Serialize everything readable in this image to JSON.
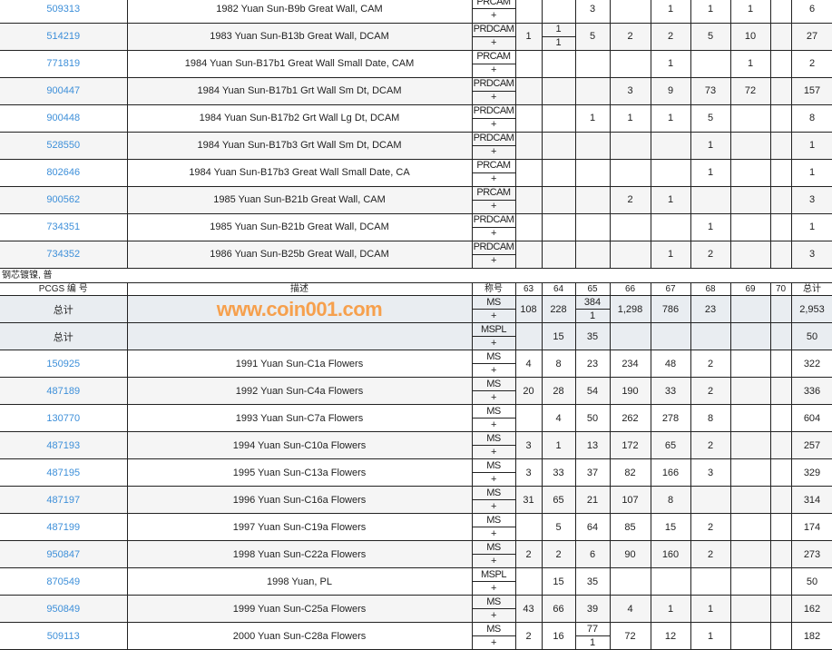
{
  "section1": {
    "rows": [
      {
        "id": "509313",
        "desc": "1982 Yuan Sun-B9b Great Wall, CAM",
        "grade": "PRCAM",
        "cells": [
          "",
          "",
          "3",
          "",
          "1",
          "1",
          "1",
          "",
          "6"
        ]
      },
      {
        "id": "514219",
        "desc": "1983 Yuan Sun-B13b Great Wall, DCAM",
        "grade": "PRDCAM",
        "cells": [
          "1",
          [
            "1",
            "1"
          ],
          "5",
          "2",
          "2",
          "5",
          "10",
          "",
          "27"
        ]
      },
      {
        "id": "771819",
        "desc": "1984 Yuan Sun-B17b1 Great Wall Small Date, CAM",
        "grade": "PRCAM",
        "cells": [
          "",
          "",
          "",
          "",
          "1",
          "",
          "1",
          "",
          "2"
        ]
      },
      {
        "id": "900447",
        "desc": "1984 Yuan Sun-B17b1 Grt Wall Sm Dt, DCAM",
        "grade": "PRDCAM",
        "cells": [
          "",
          "",
          "",
          "3",
          "9",
          "73",
          "72",
          "",
          "157"
        ]
      },
      {
        "id": "900448",
        "desc": "1984 Yuan Sun-B17b2 Grt Wall Lg Dt, DCAM",
        "grade": "PRDCAM",
        "cells": [
          "",
          "",
          "1",
          "1",
          "1",
          "5",
          "",
          "",
          "8"
        ]
      },
      {
        "id": "528550",
        "desc": "1984 Yuan Sun-B17b3 Grt Wall Sm Dt, DCAM",
        "grade": "PRDCAM",
        "cells": [
          "",
          "",
          "",
          "",
          "",
          "1",
          "",
          "",
          "1"
        ]
      },
      {
        "id": "802646",
        "desc": "1984 Yuan Sun-B17b3 Great Wall Small Date, CA",
        "grade": "PRCAM",
        "cells": [
          "",
          "",
          "",
          "",
          "",
          "1",
          "",
          "",
          "1"
        ]
      },
      {
        "id": "900562",
        "desc": "1985 Yuan Sun-B21b Great Wall, CAM",
        "grade": "PRCAM",
        "cells": [
          "",
          "",
          "",
          "2",
          "1",
          "",
          "",
          "",
          "3"
        ]
      },
      {
        "id": "734351",
        "desc": "1985 Yuan Sun-B21b Great Wall, DCAM",
        "grade": "PRDCAM",
        "cells": [
          "",
          "",
          "",
          "",
          "",
          "1",
          "",
          "",
          "1"
        ]
      },
      {
        "id": "734352",
        "desc": "1986 Yuan Sun-B25b Great Wall, DCAM",
        "grade": "PRDCAM",
        "cells": [
          "",
          "",
          "",
          "",
          "1",
          "2",
          "",
          "",
          "3"
        ]
      }
    ]
  },
  "plus": "+",
  "section2": {
    "caption": "钢芯镀镍, 普",
    "headers": [
      "PCGS 编 号",
      "描述",
      "称号",
      "63",
      "64",
      "65",
      "66",
      "67",
      "68",
      "69",
      "70",
      "总计"
    ],
    "totals": [
      {
        "label": "总计",
        "grade": "MS",
        "cells": [
          "108",
          "228",
          [
            "384",
            "1"
          ],
          "1,298",
          "786",
          "23",
          "",
          "",
          "2,953"
        ]
      },
      {
        "label": "总计",
        "grade": "MSPL",
        "cells": [
          "",
          "15",
          "35",
          "",
          "",
          "",
          "",
          "",
          "50"
        ]
      }
    ],
    "rows": [
      {
        "id": "150925",
        "desc": "1991 Yuan Sun-C1a Flowers",
        "grade": "MS",
        "cells": [
          "4",
          "8",
          "23",
          "234",
          "48",
          "2",
          "",
          "",
          "322"
        ]
      },
      {
        "id": "487189",
        "desc": "1992 Yuan Sun-C4a Flowers",
        "grade": "MS",
        "cells": [
          "20",
          "28",
          "54",
          "190",
          "33",
          "2",
          "",
          "",
          "336"
        ]
      },
      {
        "id": "130770",
        "desc": "1993 Yuan Sun-C7a Flowers",
        "grade": "MS",
        "cells": [
          "",
          "4",
          "50",
          "262",
          "278",
          "8",
          "",
          "",
          "604"
        ]
      },
      {
        "id": "487193",
        "desc": "1994 Yuan Sun-C10a Flowers",
        "grade": "MS",
        "cells": [
          "3",
          "1",
          "13",
          "172",
          "65",
          "2",
          "",
          "",
          "257"
        ]
      },
      {
        "id": "487195",
        "desc": "1995 Yuan Sun-C13a Flowers",
        "grade": "MS",
        "cells": [
          "3",
          "33",
          "37",
          "82",
          "166",
          "3",
          "",
          "",
          "329"
        ]
      },
      {
        "id": "487197",
        "desc": "1996 Yuan Sun-C16a Flowers",
        "grade": "MS",
        "cells": [
          "31",
          "65",
          "21",
          "107",
          "8",
          "",
          "",
          "",
          "314"
        ]
      },
      {
        "id": "487199",
        "desc": "1997 Yuan Sun-C19a Flowers",
        "grade": "MS",
        "cells": [
          "",
          "5",
          "64",
          "85",
          "15",
          "2",
          "",
          "",
          "174"
        ]
      },
      {
        "id": "950847",
        "desc": "1998 Yuan Sun-C22a Flowers",
        "grade": "MS",
        "cells": [
          "2",
          "2",
          "6",
          "90",
          "160",
          "2",
          "",
          "",
          "273"
        ]
      },
      {
        "id": "870549",
        "desc": "1998 Yuan, PL",
        "grade": "MSPL",
        "cells": [
          "",
          "15",
          "35",
          "",
          "",
          "",
          "",
          "",
          "50"
        ]
      },
      {
        "id": "950849",
        "desc": "1999 Yuan Sun-C25a Flowers",
        "grade": "MS",
        "cells": [
          "43",
          "66",
          "39",
          "4",
          "1",
          "1",
          "",
          "",
          "162"
        ]
      },
      {
        "id": "509113",
        "desc": "2000 Yuan Sun-C28a Flowers",
        "grade": "MS",
        "cells": [
          "2",
          "16",
          [
            "77",
            "1"
          ],
          "72",
          "12",
          "1",
          "",
          "",
          "182"
        ]
      }
    ]
  },
  "watermark": "www.coin001.com",
  "colors": {
    "link": "#3d8fd9",
    "alt_row": "#f5f5f5",
    "total_row": "#e9edf1",
    "watermark": "#f6a04d"
  }
}
